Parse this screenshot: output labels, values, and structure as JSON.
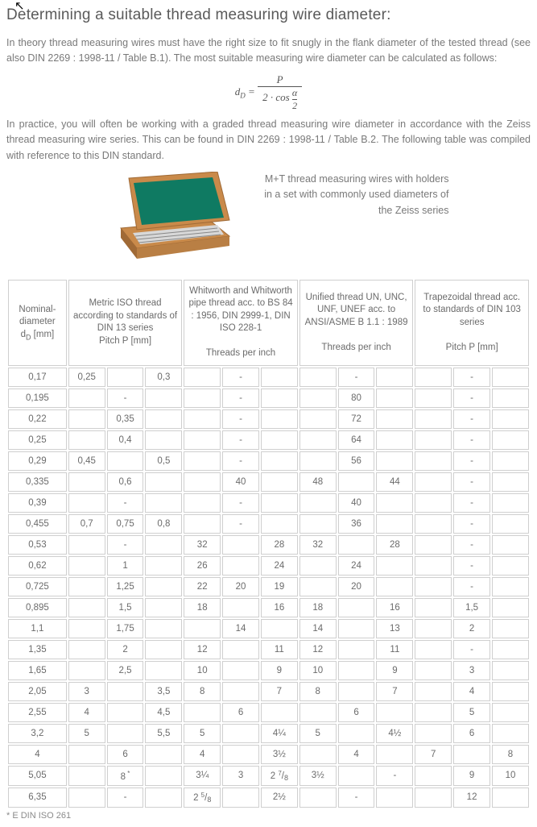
{
  "title": "Determining a suitable thread measuring wire diameter:",
  "para1": "In theory thread measuring wires must have the right size to fit snugly in the flank diameter of the tested thread (see also DIN 2269 : 1998-11 / Table B.1). The most suitable measuring wire diameter can be calculated as follows:",
  "formula": {
    "lhs": "d",
    "lhs_sub": "D",
    "num": "P",
    "den_coeff": "2 · cos",
    "den_frac_num": "α",
    "den_frac_den": "2"
  },
  "para2": "In practice, you will often be working with a graded thread measuring wire diameter in accordance with the Zeiss thread measuring wire series. This can be found in DIN 2269 : 1998-11 / Table B.2. The following table was compiled with reference to this DIN standard.",
  "caption": "M+T thread measuring wires with holders in a set with commonly used diameters of the Zeiss series",
  "footnote": "* E DIN ISO 261",
  "boxColors": {
    "wood": "#c98a4a",
    "woodDark": "#a06a36",
    "cloth": "#0f7a62",
    "tray": "#bfbfbf"
  },
  "headers": {
    "dd": "Nominal-\ndiameter\nd_D [mm]",
    "metric": "Metric ISO thread according to standards of DIN 13 series",
    "metric_sub": "Pitch P [mm]",
    "whit": "Whitworth and Whitworth pipe thread acc. to BS 84 : 1956, DIN 2999-1, DIN ISO 228-1",
    "whit_sub": "Threads per inch",
    "un": "Unified thread UN, UNC, UNF, UNEF acc. to ANSI/ASME B 1.1 : 1989",
    "un_sub": "Threads per inch",
    "trap": "Trapezoidal thread acc. to standards of DIN 103 series",
    "trap_sub": "Pitch P [mm]"
  },
  "rows": [
    [
      "0,17",
      "0,25",
      "",
      "0,3",
      "",
      "-",
      "",
      "",
      "-",
      "",
      "",
      "-",
      ""
    ],
    [
      "0,195",
      "",
      "-",
      "",
      "",
      "-",
      "",
      "",
      "80",
      "",
      "",
      "-",
      ""
    ],
    [
      "0,22",
      "",
      "0,35",
      "",
      "",
      "-",
      "",
      "",
      "72",
      "",
      "",
      "-",
      ""
    ],
    [
      "0,25",
      "",
      "0,4",
      "",
      "",
      "-",
      "",
      "",
      "64",
      "",
      "",
      "-",
      ""
    ],
    [
      "0,29",
      "0,45",
      "",
      "0,5",
      "",
      "-",
      "",
      "",
      "56",
      "",
      "",
      "-",
      ""
    ],
    [
      "0,335",
      "",
      "0,6",
      "",
      "",
      "40",
      "",
      "48",
      "",
      "44",
      "",
      "-",
      ""
    ],
    [
      "0,39",
      "",
      "-",
      "",
      "",
      "-",
      "",
      "",
      "40",
      "",
      "",
      "-",
      ""
    ],
    [
      "0,455",
      "0,7",
      "0,75",
      "0,8",
      "",
      "-",
      "",
      "",
      "36",
      "",
      "",
      "-",
      ""
    ],
    [
      "0,53",
      "",
      "-",
      "",
      "32",
      "",
      "28",
      "32",
      "",
      "28",
      "",
      "-",
      ""
    ],
    [
      "0,62",
      "",
      "1",
      "",
      "26",
      "",
      "24",
      "",
      "24",
      "",
      "",
      "-",
      ""
    ],
    [
      "0,725",
      "",
      "1,25",
      "",
      "22",
      "20",
      "19",
      "",
      "20",
      "",
      "",
      "-",
      ""
    ],
    [
      "0,895",
      "",
      "1,5",
      "",
      "18",
      "",
      "16",
      "18",
      "",
      "16",
      "",
      "1,5",
      ""
    ],
    [
      "1,1",
      "",
      "1,75",
      "",
      "",
      "14",
      "",
      "14",
      "",
      "13",
      "",
      "2",
      ""
    ],
    [
      "1,35",
      "",
      "2",
      "",
      "12",
      "",
      "11",
      "12",
      "",
      "11",
      "",
      "-",
      ""
    ],
    [
      "1,65",
      "",
      "2,5",
      "",
      "10",
      "",
      "9",
      "10",
      "",
      "9",
      "",
      "3",
      ""
    ],
    [
      "2,05",
      "3",
      "",
      "3,5",
      "8",
      "",
      "7",
      "8",
      "",
      "7",
      "",
      "4",
      ""
    ],
    [
      "2,55",
      "4",
      "",
      "4,5",
      "",
      "6",
      "",
      "",
      "6",
      "",
      "",
      "5",
      ""
    ],
    [
      "3,2",
      "5",
      "",
      "5,5",
      "5",
      "",
      "4¼",
      "5",
      "",
      "4½",
      "",
      "6",
      ""
    ],
    [
      "4",
      "",
      "6",
      "",
      "4",
      "",
      "3½",
      "",
      "4",
      "",
      "7",
      "",
      "8"
    ],
    [
      "5,05",
      "",
      "8*",
      "",
      "3¼",
      "3",
      "2⅞",
      "3½",
      "",
      "-",
      "",
      "9",
      "10"
    ],
    [
      "6,35",
      "",
      "-",
      "",
      "2⅝",
      "",
      "2½",
      "",
      "-",
      "",
      "",
      "12",
      ""
    ]
  ]
}
